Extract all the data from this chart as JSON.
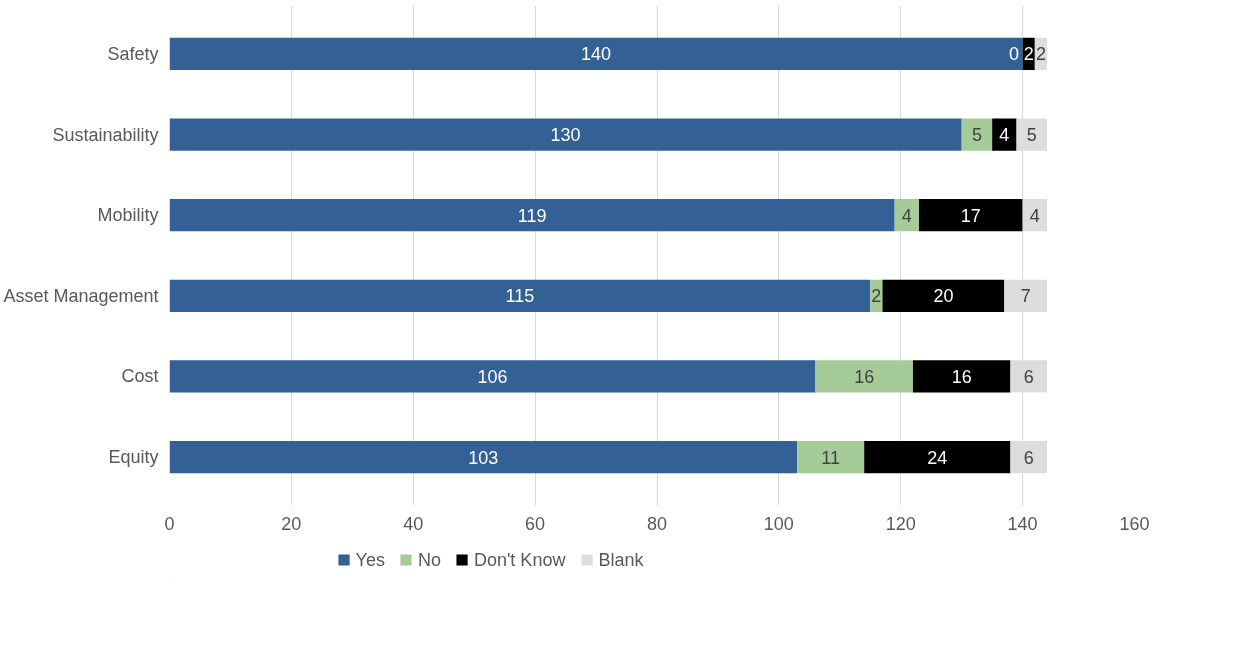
{
  "chart_data": {
    "type": "bar",
    "orientation": "horizontal",
    "stacked": true,
    "categories": [
      "Safety",
      "Sustainability",
      "Mobility",
      "Asset Management",
      "Cost",
      "Equity"
    ],
    "series": [
      {
        "name": "Yes",
        "color": "#336196",
        "values": [
          140,
          130,
          119,
          115,
          106,
          103
        ]
      },
      {
        "name": "No",
        "color": "#a5cc98",
        "values": [
          0,
          5,
          4,
          2,
          16,
          11
        ]
      },
      {
        "name": "Don't Know",
        "color": "#000000",
        "values": [
          2,
          4,
          17,
          20,
          16,
          24
        ]
      },
      {
        "name": "Blank",
        "color": "#dddddd",
        "values": [
          2,
          5,
          4,
          7,
          6,
          6
        ]
      }
    ],
    "xlim": [
      0,
      160
    ],
    "xticks": [
      0,
      20,
      40,
      60,
      80,
      100,
      120,
      140,
      160
    ],
    "grid": "x",
    "legend": "bottom",
    "data_labels": true
  }
}
